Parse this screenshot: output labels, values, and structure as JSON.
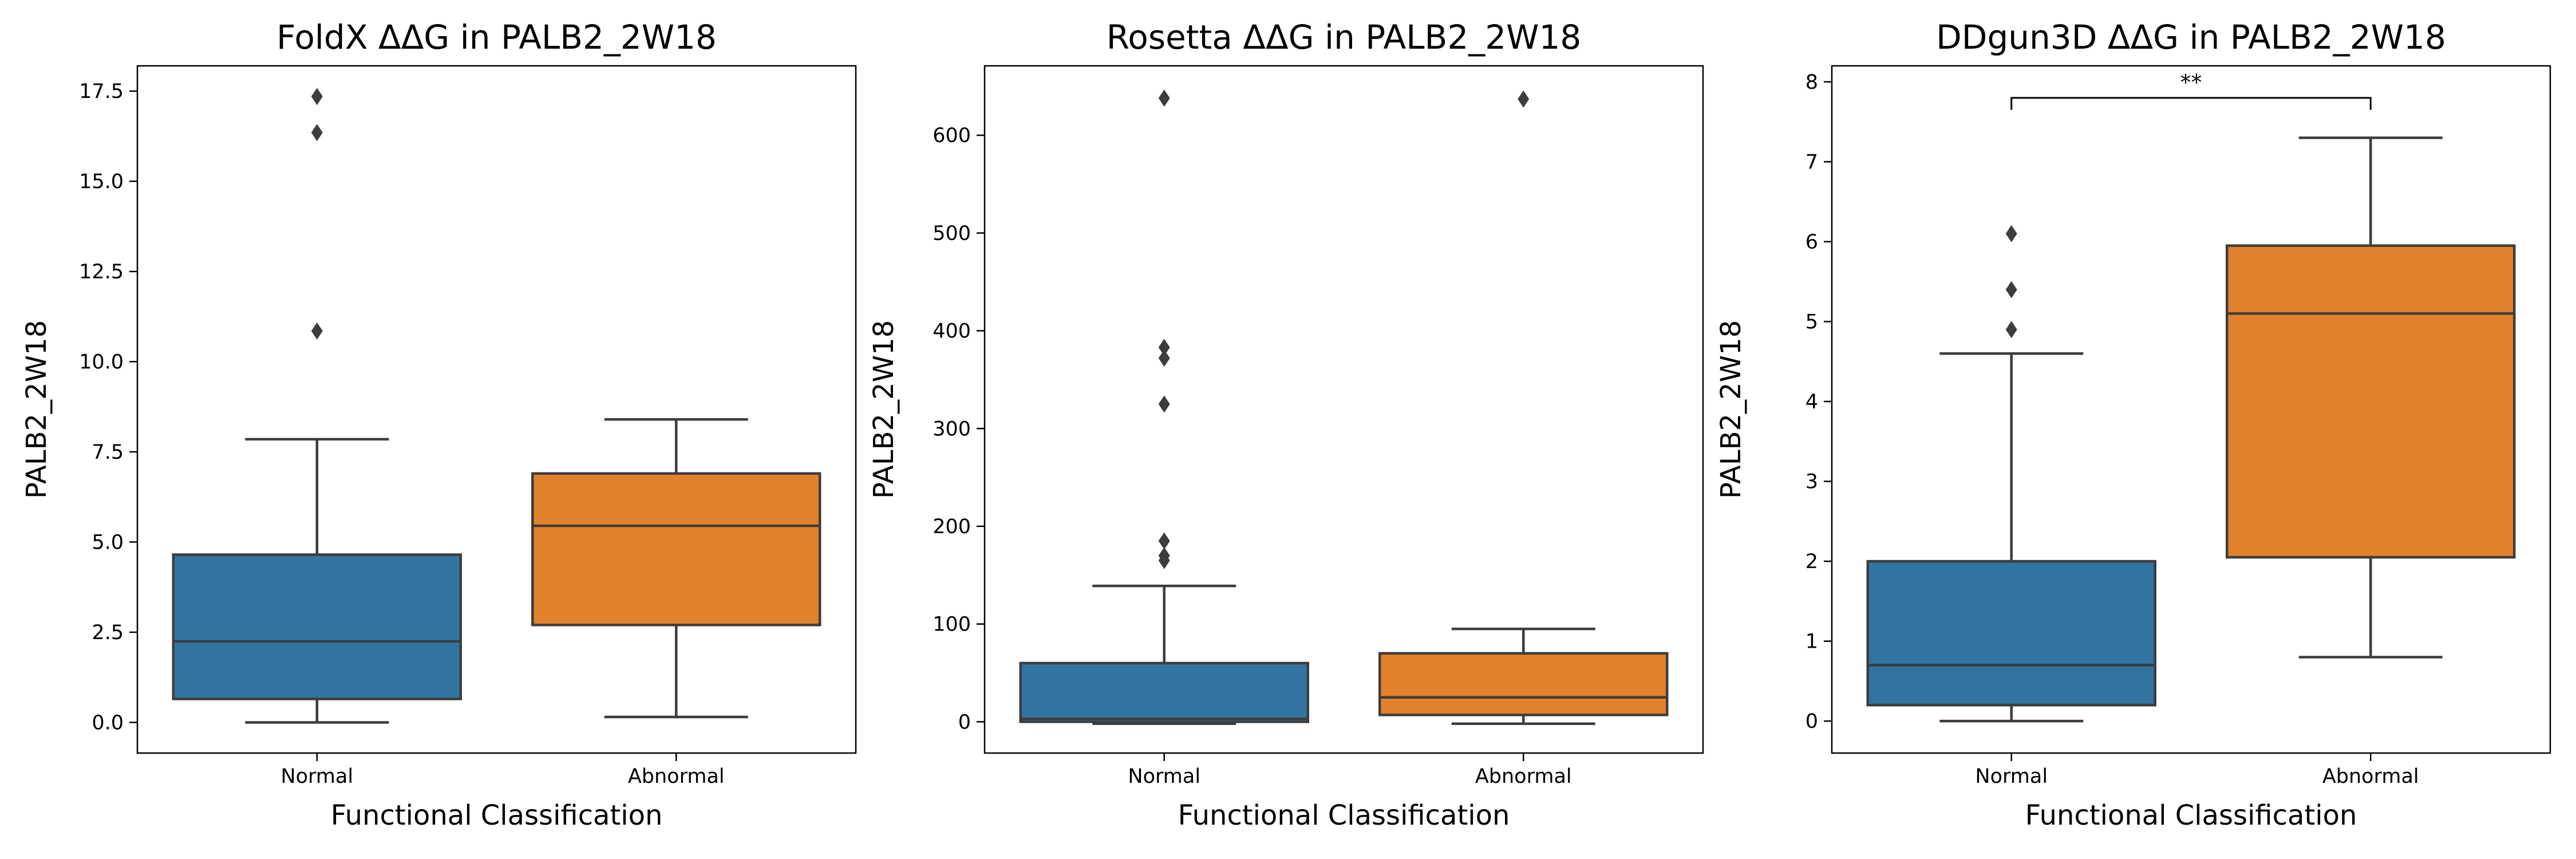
{
  "chart_data": [
    {
      "type": "box",
      "title": "FoldX ΔΔG in PALB2_2W18",
      "xlabel": "Functional Classification",
      "ylabel": "PALB2_2W18",
      "ylim": [
        -0.85,
        18.2
      ],
      "yticks": [
        0.0,
        2.5,
        5.0,
        7.5,
        10.0,
        12.5,
        15.0,
        17.5
      ],
      "ytick_labels": [
        "0.0",
        "2.5",
        "5.0",
        "7.5",
        "10.0",
        "12.5",
        "15.0",
        "17.5"
      ],
      "categories": [
        "Normal",
        "Abnormal"
      ],
      "boxes": [
        {
          "category": "Normal",
          "color": "#3274a1",
          "whisker_low": 0.0,
          "q1": 0.65,
          "median": 2.25,
          "q3": 4.65,
          "whisker_high": 7.85,
          "outliers": [
            10.85,
            16.35,
            17.35
          ]
        },
        {
          "category": "Abnormal",
          "color": "#e1812c",
          "whisker_low": 0.15,
          "q1": 2.7,
          "median": 5.45,
          "q3": 6.9,
          "whisker_high": 8.4,
          "outliers": []
        }
      ],
      "significance": null
    },
    {
      "type": "box",
      "title": "Rosetta ΔΔG in PALB2_2W18",
      "xlabel": "Functional Classification",
      "ylabel": "PALB2_2W18",
      "ylim": [
        -32,
        671
      ],
      "yticks": [
        0,
        100,
        200,
        300,
        400,
        500,
        600
      ],
      "ytick_labels": [
        "0",
        "100",
        "200",
        "300",
        "400",
        "500",
        "600"
      ],
      "categories": [
        "Normal",
        "Abnormal"
      ],
      "boxes": [
        {
          "category": "Normal",
          "color": "#3274a1",
          "whisker_low": -2,
          "q1": 0,
          "median": 3,
          "q3": 60,
          "whisker_high": 139,
          "outliers": [
            165,
            170,
            185,
            325,
            372,
            383,
            638
          ]
        },
        {
          "category": "Abnormal",
          "color": "#e1812c",
          "whisker_low": -2,
          "q1": 7,
          "median": 25,
          "q3": 70,
          "whisker_high": 95,
          "outliers": [
            637
          ]
        }
      ],
      "significance": null
    },
    {
      "type": "box",
      "title": "DDgun3D ΔΔG in PALB2_2W18",
      "xlabel": "Functional Classification",
      "ylabel": "PALB2_2W18",
      "ylim": [
        -0.4,
        8.2
      ],
      "yticks": [
        0,
        1,
        2,
        3,
        4,
        5,
        6,
        7,
        8
      ],
      "ytick_labels": [
        "0",
        "1",
        "2",
        "3",
        "4",
        "5",
        "6",
        "7",
        "8"
      ],
      "categories": [
        "Normal",
        "Abnormal"
      ],
      "boxes": [
        {
          "category": "Normal",
          "color": "#3274a1",
          "whisker_low": 0.0,
          "q1": 0.2,
          "median": 0.7,
          "q3": 2.0,
          "whisker_high": 4.6,
          "outliers": [
            4.9,
            5.4,
            6.1
          ]
        },
        {
          "category": "Abnormal",
          "color": "#e1812c",
          "whisker_low": 0.8,
          "q1": 2.05,
          "median": 5.1,
          "q3": 5.95,
          "whisker_high": 7.3,
          "outliers": []
        }
      ],
      "significance": {
        "label": "**",
        "y": 7.8,
        "tip": 0.15
      }
    }
  ]
}
